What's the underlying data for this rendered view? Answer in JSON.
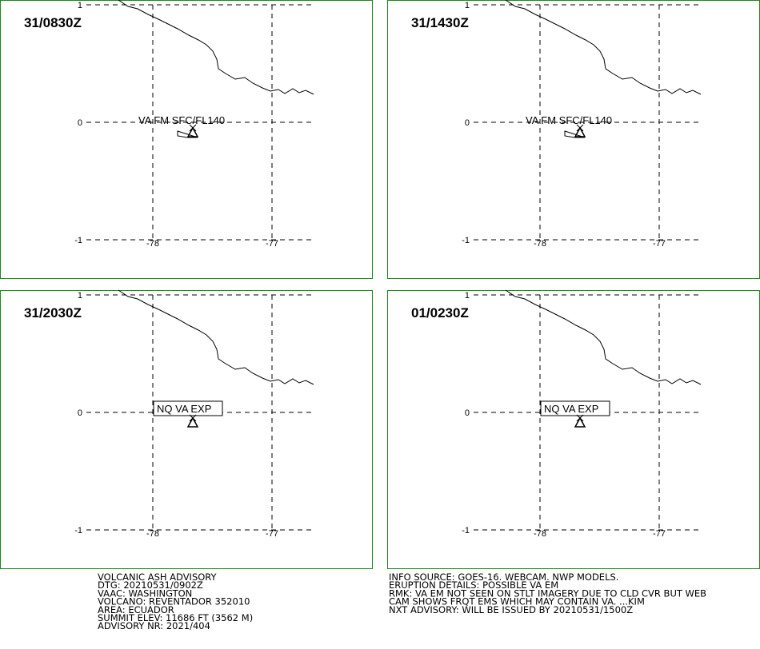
{
  "panels": [
    {
      "time": "31/0830Z",
      "annotation": "VA FM SFC/FL140"
    },
    {
      "time": "31/1430Z",
      "annotation": "VA FM SFC/FL140"
    },
    {
      "time": "31/2030Z",
      "annotation": "NQ  VA  EXP"
    },
    {
      "time": "01/0230Z",
      "annotation": "NQ  VA  EXP"
    }
  ],
  "lat_labels": [
    "1",
    "0",
    "-1"
  ],
  "lon_labels": [
    "-78",
    "-77"
  ],
  "advisory_left": [
    "VOLCANIC ASH ADVISORY",
    "DTG: 20210531/0902Z",
    "VAAC: WASHINGTON",
    "VOLCANO: REVENTADOR 352010",
    "AREA: ECUADOR",
    "SUMMIT ELEV: 11686 FT (3562 M)",
    "ADVISORY NR: 2021/404"
  ],
  "advisory_right": [
    "INFO SOURCE: GOES-16. WEBCAM. NWP MODELS.",
    "ERUPTION DETAILS: POSSIBLE VA EM",
    "RMK: VA EM NOT SEEN ON STLT IMAGERY DUE TO CLD CVR BUT WEB",
    "CAM SHOWS FRQT EMS WHICH MAY CONTAIN VA. ...KIM",
    "NXT ADVISORY: WILL BE ISSUED BY 20210531/1500Z"
  ]
}
